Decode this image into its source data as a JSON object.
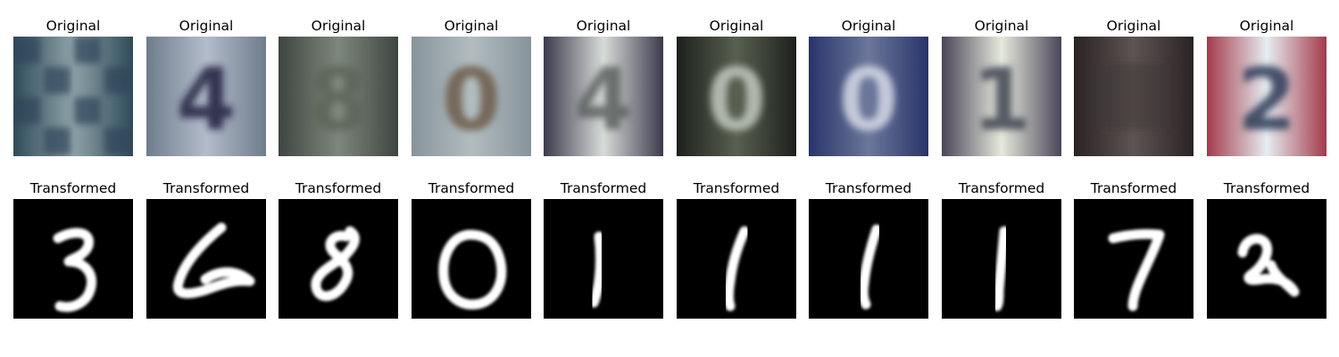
{
  "rows": [
    {
      "label": "Original",
      "kind": "svhn",
      "tiles": [
        {
          "glyph": "",
          "bg_outer": "#2f4c5a",
          "bg_inner": "#8fa3a8",
          "ink": "#2c4458",
          "dark": false,
          "pattern": "checker"
        },
        {
          "glyph": "4",
          "bg_outer": "#6f7d8c",
          "bg_inner": "#b3bccb",
          "ink": "#1f2340",
          "dark": true
        },
        {
          "glyph": "8",
          "bg_outer": "#3f4540",
          "bg_inner": "#7e877c",
          "ink": "#5d6558",
          "dark": true
        },
        {
          "glyph": "0",
          "bg_outer": "#87949b",
          "bg_inner": "#b3bdc0",
          "ink": "#6e5c4c",
          "dark": true
        },
        {
          "glyph": "4",
          "bg_outer": "#3c3a4d",
          "bg_inner": "#d8dcd8",
          "ink": "#5c6260",
          "dark": true
        },
        {
          "glyph": "0",
          "bg_outer": "#1c201c",
          "bg_inner": "#586050",
          "ink": "#c2cbc0",
          "dark": false
        },
        {
          "glyph": "0",
          "bg_outer": "#28336a",
          "bg_inner": "#6c779a",
          "ink": "#d8dce8",
          "dark": false
        },
        {
          "glyph": "1",
          "bg_outer": "#4a4558",
          "bg_inner": "#e6e9dd",
          "ink": "#3c4250",
          "dark": true
        },
        {
          "glyph": "",
          "bg_outer": "#2a2224",
          "bg_inner": "#5c5552",
          "ink": "#3c3a38",
          "dark": true
        },
        {
          "glyph": "2",
          "bg_outer": "#a43a4a",
          "bg_inner": "#e6edf2",
          "ink": "#2c3a55",
          "dark": true
        }
      ]
    },
    {
      "label": "Transformed",
      "kind": "mnist",
      "tiles": [
        {
          "glyph": "3"
        },
        {
          "glyph": "6"
        },
        {
          "glyph": "8"
        },
        {
          "glyph": "0"
        },
        {
          "glyph": "1"
        },
        {
          "glyph": "1"
        },
        {
          "glyph": "1"
        },
        {
          "glyph": "1"
        },
        {
          "glyph": "7"
        },
        {
          "glyph": "2"
        }
      ]
    }
  ]
}
